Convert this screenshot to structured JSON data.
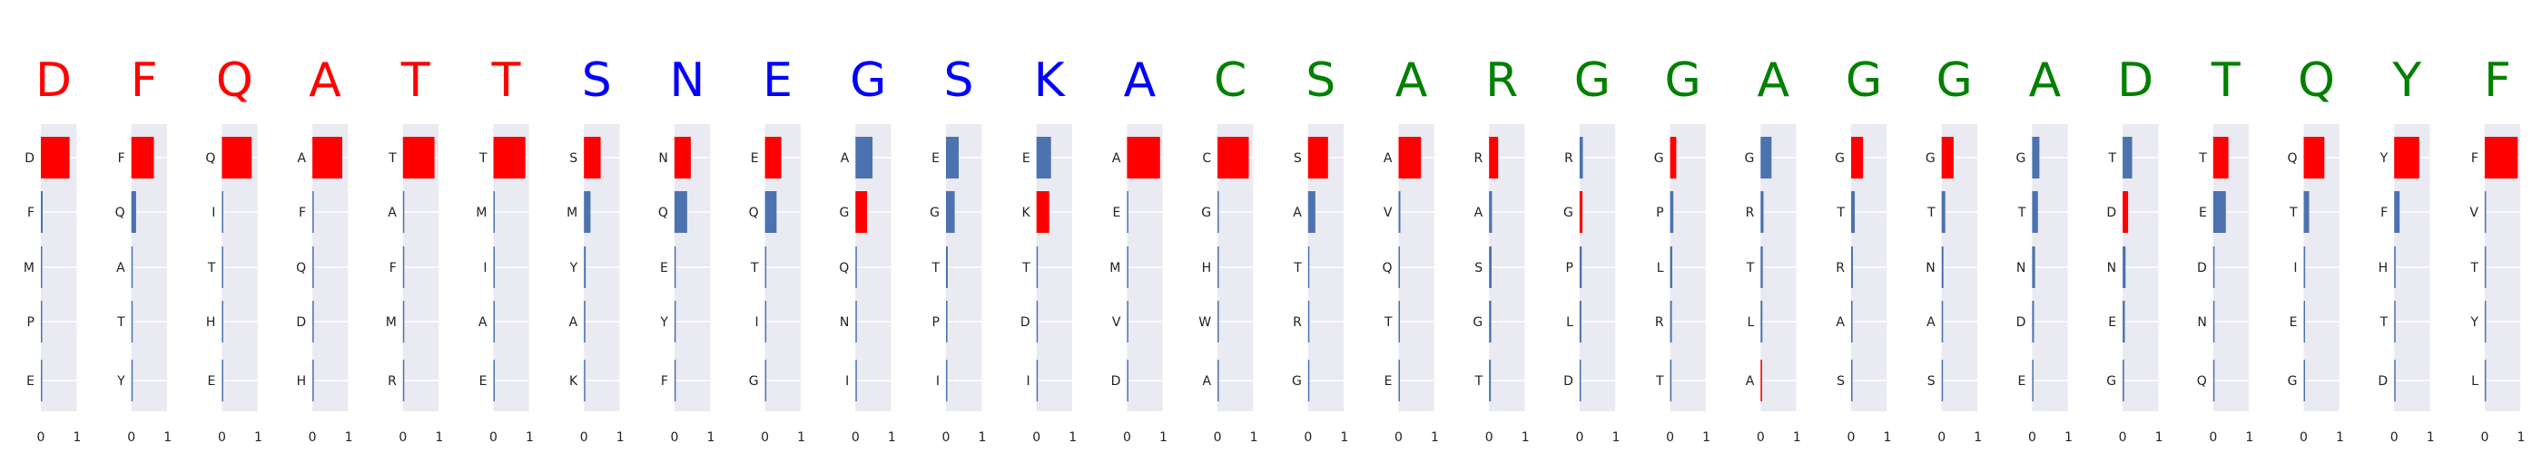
{
  "chart_data": {
    "type": "bar",
    "orientation": "horizontal",
    "xlim": [
      0,
      1
    ],
    "x_ticks": [
      "0",
      "1"
    ],
    "grid": true,
    "colors": {
      "selected": "#ff0000",
      "other": "#4c72b0",
      "panel_bg": "#eaeaf2",
      "header_red": "#ff0000",
      "header_blue": "#0000ff",
      "header_green": "#008000"
    },
    "panels": [
      {
        "header": "D",
        "header_color": "red",
        "labels": [
          "D",
          "F",
          "M",
          "P",
          "E"
        ],
        "values": [
          0.79,
          0.05,
          0.01,
          0.005,
          0.005
        ],
        "highlight": 0
      },
      {
        "header": "F",
        "header_color": "red",
        "labels": [
          "F",
          "Q",
          "A",
          "T",
          "Y"
        ],
        "values": [
          0.62,
          0.13,
          0.03,
          0.01,
          0.01
        ],
        "highlight": 0
      },
      {
        "header": "Q",
        "header_color": "red",
        "labels": [
          "Q",
          "I",
          "T",
          "H",
          "E"
        ],
        "values": [
          0.82,
          0.03,
          0.005,
          0.005,
          0.005
        ],
        "highlight": 0
      },
      {
        "header": "A",
        "header_color": "red",
        "labels": [
          "A",
          "F",
          "Q",
          "D",
          "H"
        ],
        "values": [
          0.82,
          0.03,
          0.005,
          0.005,
          0.005
        ],
        "highlight": 0
      },
      {
        "header": "T",
        "header_color": "red",
        "labels": [
          "T",
          "A",
          "F",
          "M",
          "R"
        ],
        "values": [
          0.87,
          0.005,
          0.005,
          0.005,
          0.005
        ],
        "highlight": 0
      },
      {
        "header": "T",
        "header_color": "red",
        "labels": [
          "T",
          "M",
          "I",
          "A",
          "E"
        ],
        "values": [
          0.88,
          0.005,
          0.005,
          0.005,
          0.005
        ],
        "highlight": 0
      },
      {
        "header": "S",
        "header_color": "blue",
        "labels": [
          "S",
          "M",
          "Y",
          "A",
          "K"
        ],
        "values": [
          0.46,
          0.18,
          0.05,
          0.04,
          0.02
        ],
        "highlight": 0
      },
      {
        "header": "N",
        "header_color": "blue",
        "labels": [
          "N",
          "Q",
          "E",
          "Y",
          "F"
        ],
        "values": [
          0.45,
          0.35,
          0.03,
          0.02,
          0.01
        ],
        "highlight": 0
      },
      {
        "header": "E",
        "header_color": "blue",
        "labels": [
          "E",
          "Q",
          "T",
          "I",
          "G"
        ],
        "values": [
          0.45,
          0.32,
          0.03,
          0.02,
          0.01
        ],
        "highlight": 0
      },
      {
        "header": "G",
        "header_color": "blue",
        "labels": [
          "A",
          "G",
          "Q",
          "N",
          "I"
        ],
        "values": [
          0.47,
          0.32,
          0.03,
          0.02,
          0.01
        ],
        "highlight": 1
      },
      {
        "header": "S",
        "header_color": "blue",
        "labels": [
          "E",
          "G",
          "T",
          "P",
          "I"
        ],
        "values": [
          0.35,
          0.24,
          0.05,
          0.04,
          0.03
        ],
        "highlight": -1
      },
      {
        "header": "K",
        "header_color": "blue",
        "labels": [
          "E",
          "K",
          "T",
          "D",
          "I"
        ],
        "values": [
          0.4,
          0.35,
          0.03,
          0.02,
          0.02
        ],
        "highlight": 1
      },
      {
        "header": "A",
        "header_color": "blue",
        "labels": [
          "A",
          "E",
          "M",
          "V",
          "D"
        ],
        "values": [
          0.91,
          0.005,
          0.005,
          0.005,
          0.005
        ],
        "highlight": 0
      },
      {
        "header": "C",
        "header_color": "green",
        "labels": [
          "C",
          "G",
          "H",
          "W",
          "A"
        ],
        "values": [
          0.86,
          0.005,
          0.005,
          0.005,
          0.005
        ],
        "highlight": 0
      },
      {
        "header": "S",
        "header_color": "green",
        "labels": [
          "S",
          "A",
          "T",
          "R",
          "G"
        ],
        "values": [
          0.55,
          0.2,
          0.03,
          0.02,
          0.01
        ],
        "highlight": 0
      },
      {
        "header": "A",
        "header_color": "green",
        "labels": [
          "A",
          "V",
          "Q",
          "T",
          "E"
        ],
        "values": [
          0.62,
          0.05,
          0.02,
          0.01,
          0.01
        ],
        "highlight": 0
      },
      {
        "header": "R",
        "header_color": "green",
        "labels": [
          "R",
          "A",
          "S",
          "G",
          "T"
        ],
        "values": [
          0.25,
          0.08,
          0.07,
          0.06,
          0.05
        ],
        "highlight": 0
      },
      {
        "header": "G",
        "header_color": "green",
        "labels": [
          "R",
          "G",
          "P",
          "L",
          "D"
        ],
        "values": [
          0.09,
          0.08,
          0.06,
          0.05,
          0.04
        ],
        "highlight": 1
      },
      {
        "header": "G",
        "header_color": "green",
        "labels": [
          "G",
          "P",
          "L",
          "R",
          "T"
        ],
        "values": [
          0.17,
          0.09,
          0.06,
          0.05,
          0.04
        ],
        "highlight": 0
      },
      {
        "header": "A",
        "header_color": "green",
        "labels": [
          "G",
          "R",
          "T",
          "L",
          "A"
        ],
        "values": [
          0.3,
          0.08,
          0.06,
          0.05,
          0.04
        ],
        "highlight": 4
      },
      {
        "header": "G",
        "header_color": "green",
        "labels": [
          "G",
          "T",
          "R",
          "A",
          "S"
        ],
        "values": [
          0.33,
          0.1,
          0.05,
          0.04,
          0.03
        ],
        "highlight": 0
      },
      {
        "header": "G",
        "header_color": "green",
        "labels": [
          "G",
          "T",
          "N",
          "A",
          "S"
        ],
        "values": [
          0.33,
          0.1,
          0.05,
          0.04,
          0.03
        ],
        "highlight": 0
      },
      {
        "header": "A",
        "header_color": "green",
        "labels": [
          "G",
          "T",
          "N",
          "D",
          "E"
        ],
        "values": [
          0.2,
          0.16,
          0.08,
          0.05,
          0.03
        ],
        "highlight": -1
      },
      {
        "header": "D",
        "header_color": "green",
        "labels": [
          "T",
          "D",
          "N",
          "E",
          "G"
        ],
        "values": [
          0.26,
          0.15,
          0.08,
          0.06,
          0.04
        ],
        "highlight": 1
      },
      {
        "header": "T",
        "header_color": "green",
        "labels": [
          "T",
          "E",
          "D",
          "N",
          "Q"
        ],
        "values": [
          0.42,
          0.35,
          0.02,
          0.01,
          0.01
        ],
        "highlight": 0
      },
      {
        "header": "Q",
        "header_color": "green",
        "labels": [
          "Q",
          "T",
          "I",
          "E",
          "G"
        ],
        "values": [
          0.57,
          0.15,
          0.04,
          0.03,
          0.01
        ],
        "highlight": 0
      },
      {
        "header": "Y",
        "header_color": "green",
        "labels": [
          "Y",
          "F",
          "H",
          "T",
          "D"
        ],
        "values": [
          0.69,
          0.15,
          0.04,
          0.02,
          0.01
        ],
        "highlight": 0
      },
      {
        "header": "F",
        "header_color": "green",
        "labels": [
          "F",
          "V",
          "T",
          "Y",
          "L"
        ],
        "values": [
          0.91,
          0.005,
          0.005,
          0.005,
          0.005
        ],
        "highlight": 0
      }
    ]
  }
}
